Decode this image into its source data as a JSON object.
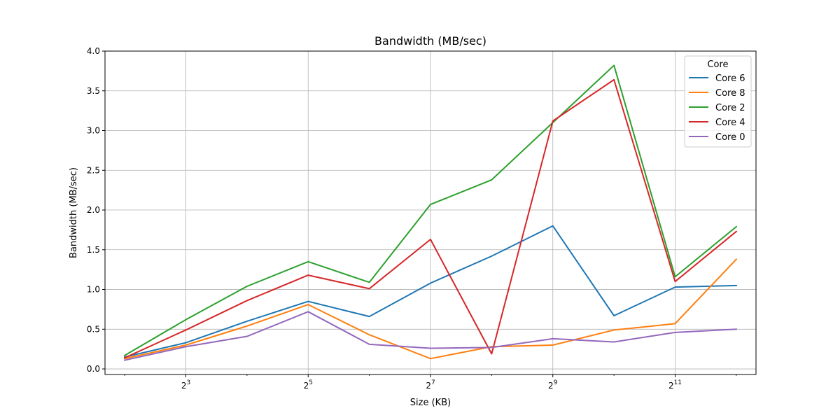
{
  "chart_data": {
    "type": "line",
    "title": "Bandwidth (MB/sec)",
    "xlabel": "Size (KB)",
    "ylabel": "Bandwidth (MB/sec)",
    "x_scale": "log2",
    "x": [
      4,
      8,
      16,
      32,
      64,
      128,
      256,
      512,
      1024,
      2048,
      4096
    ],
    "xlim": [
      3.2,
      5120
    ],
    "x_ticks": [
      8,
      32,
      128,
      512,
      2048
    ],
    "x_tick_base": "2",
    "x_tick_exponents": [
      "3",
      "5",
      "7",
      "9",
      "11"
    ],
    "ylim": [
      -0.07,
      4.0
    ],
    "y_ticks": [
      0.0,
      0.5,
      1.0,
      1.5,
      2.0,
      2.5,
      3.0,
      3.5,
      4.0
    ],
    "y_tick_labels": [
      "0.0",
      "0.5",
      "1.0",
      "1.5",
      "2.0",
      "2.5",
      "3.0",
      "3.5",
      "4.0"
    ],
    "grid": true,
    "legend_title": "Core",
    "legend_position": "top-right",
    "series": [
      {
        "name": "Core 6",
        "color": "#1f77b4",
        "values": [
          0.15,
          0.33,
          0.6,
          0.85,
          0.66,
          1.08,
          1.42,
          1.8,
          0.67,
          1.03,
          1.05
        ]
      },
      {
        "name": "Core 8",
        "color": "#ff7f0e",
        "values": [
          0.13,
          0.3,
          0.54,
          0.81,
          0.43,
          0.13,
          0.28,
          0.3,
          0.49,
          0.57,
          1.38
        ]
      },
      {
        "name": "Core 2",
        "color": "#2ca02c",
        "values": [
          0.17,
          0.62,
          1.04,
          1.35,
          1.09,
          2.07,
          2.38,
          3.1,
          3.82,
          1.16,
          1.79
        ]
      },
      {
        "name": "Core 4",
        "color": "#d62728",
        "values": [
          0.14,
          0.49,
          0.86,
          1.18,
          1.01,
          1.63,
          0.19,
          3.12,
          3.64,
          1.1,
          1.73
        ]
      },
      {
        "name": "Core 0",
        "color": "#9467bd",
        "values": [
          0.11,
          0.28,
          0.41,
          0.72,
          0.31,
          0.26,
          0.27,
          0.38,
          0.34,
          0.46,
          0.5
        ]
      }
    ]
  }
}
